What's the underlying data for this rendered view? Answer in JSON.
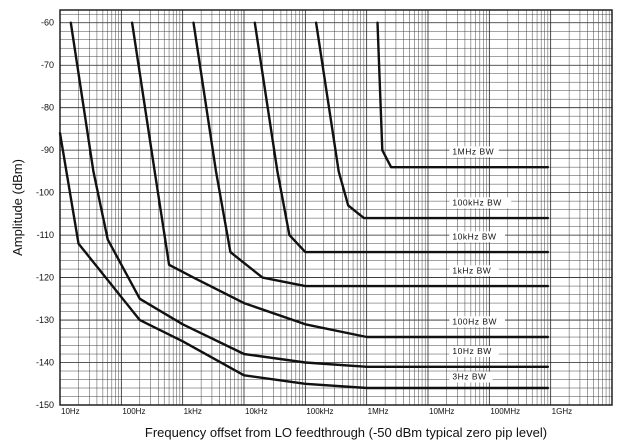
{
  "chart_data": {
    "type": "line",
    "xlabel": "Frequency offset from LO feedthrough (-50 dBm typical zero pip level)",
    "ylabel": "Amplitude (dBm)",
    "x_scale": "log",
    "xlim": [
      10,
      10000000000
    ],
    "ylim": [
      -150,
      -57
    ],
    "grid": true,
    "x_ticks": [
      {
        "value": 10,
        "label": "10Hz"
      },
      {
        "value": 100,
        "label": "100Hz"
      },
      {
        "value": 1000,
        "label": "1kHz"
      },
      {
        "value": 10000,
        "label": "10kHz"
      },
      {
        "value": 100000,
        "label": "100kHz"
      },
      {
        "value": 1000000,
        "label": "1MHz"
      },
      {
        "value": 10000000,
        "label": "10MHz"
      },
      {
        "value": 100000000,
        "label": "100MHz"
      },
      {
        "value": 1000000000,
        "label": "1GHz"
      }
    ],
    "y_ticks": [
      {
        "value": -60,
        "label": "-60"
      },
      {
        "value": -70,
        "label": "-70"
      },
      {
        "value": -80,
        "label": "-80"
      },
      {
        "value": -90,
        "label": "-90"
      },
      {
        "value": -100,
        "label": "-100"
      },
      {
        "value": -110,
        "label": "-110"
      },
      {
        "value": -120,
        "label": "-120"
      },
      {
        "value": -130,
        "label": "-130"
      },
      {
        "value": -140,
        "label": "-140"
      },
      {
        "value": -150,
        "label": "-150"
      }
    ],
    "series": [
      {
        "name": "1MHz BW",
        "points": [
          [
            1500000,
            -60
          ],
          [
            1800000,
            -90
          ],
          [
            2500000,
            -94
          ],
          [
            900000000,
            -94
          ]
        ]
      },
      {
        "name": "100kHz BW",
        "points": [
          [
            150000,
            -60
          ],
          [
            350000,
            -95
          ],
          [
            500000,
            -103
          ],
          [
            900000,
            -106
          ],
          [
            900000000,
            -106
          ]
        ]
      },
      {
        "name": "10kHz BW",
        "points": [
          [
            15000,
            -60
          ],
          [
            35000,
            -95
          ],
          [
            55000,
            -110
          ],
          [
            100000,
            -114
          ],
          [
            900000000,
            -114
          ]
        ]
      },
      {
        "name": "1kHz BW",
        "points": [
          [
            1500,
            -60
          ],
          [
            3500,
            -95
          ],
          [
            6000,
            -114
          ],
          [
            20000,
            -120
          ],
          [
            100000,
            -122
          ],
          [
            900000000,
            -122
          ]
        ]
      },
      {
        "name": "100Hz BW",
        "points": [
          [
            150,
            -60
          ],
          [
            350,
            -95
          ],
          [
            600,
            -117
          ],
          [
            1500,
            -120
          ],
          [
            10000,
            -126
          ],
          [
            100000,
            -131
          ],
          [
            1000000,
            -134
          ],
          [
            900000000,
            -134
          ]
        ]
      },
      {
        "name": "10Hz BW",
        "points": [
          [
            15,
            -60
          ],
          [
            35,
            -95
          ],
          [
            60,
            -111
          ],
          [
            200,
            -125
          ],
          [
            1000,
            -131
          ],
          [
            10000,
            -138
          ],
          [
            100000,
            -140
          ],
          [
            1000000,
            -141
          ],
          [
            900000000,
            -141
          ]
        ]
      },
      {
        "name": "3Hz BW",
        "points": [
          [
            10,
            -86
          ],
          [
            20,
            -112
          ],
          [
            200,
            -130
          ],
          [
            1000,
            -135
          ],
          [
            10000,
            -143
          ],
          [
            100000,
            -145
          ],
          [
            1000000,
            -146
          ],
          [
            900000000,
            -146
          ]
        ]
      }
    ],
    "annotations": [
      {
        "text": "1MHz BW",
        "x": 25000000,
        "y": -91
      },
      {
        "text": "100kHz BW",
        "x": 25000000,
        "y": -103
      },
      {
        "text": "10kHz BW",
        "x": 25000000,
        "y": -111
      },
      {
        "text": "1kHz BW",
        "x": 25000000,
        "y": -119
      },
      {
        "text": "100Hz BW",
        "x": 25000000,
        "y": -131
      },
      {
        "text": "10Hz BW",
        "x": 25000000,
        "y": -138
      },
      {
        "text": "3Hz BW",
        "x": 25000000,
        "y": -144
      }
    ]
  }
}
